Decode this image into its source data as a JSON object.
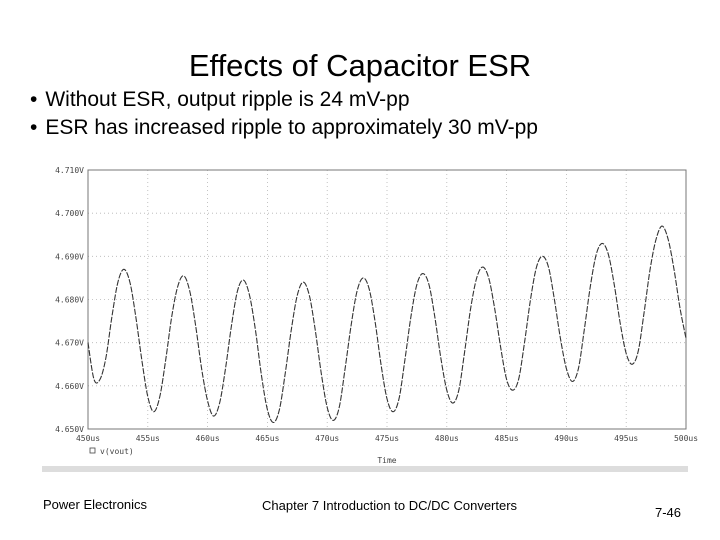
{
  "slide": {
    "title": "Effects of Capacitor ESR",
    "bullets": [
      "Without ESR, output ripple is 24 mV-pp",
      "ESR has increased ripple to approximately 30 mV-pp"
    ]
  },
  "footer": {
    "left": "Power Electronics",
    "center": "Chapter 7 Introduction to DC/DC Converters",
    "right": "7-46"
  },
  "chart_data": {
    "type": "line",
    "title": "",
    "xlabel": "Time",
    "ylabel": "",
    "x_unit": "us",
    "xlim": [
      450,
      500
    ],
    "ylim": [
      4.65,
      4.71
    ],
    "x_ticks": [
      {
        "value": 450,
        "label": "450us"
      },
      {
        "value": 455,
        "label": "455us"
      },
      {
        "value": 460,
        "label": "460us"
      },
      {
        "value": 465,
        "label": "465us"
      },
      {
        "value": 470,
        "label": "470us"
      },
      {
        "value": 475,
        "label": "475us"
      },
      {
        "value": 480,
        "label": "480us"
      },
      {
        "value": 485,
        "label": "485us"
      },
      {
        "value": 490,
        "label": "490us"
      },
      {
        "value": 495,
        "label": "495us"
      },
      {
        "value": 500,
        "label": "500us"
      }
    ],
    "y_ticks": [
      {
        "value": 4.71,
        "label": "4.710V"
      },
      {
        "value": 4.7,
        "label": "4.700V"
      },
      {
        "value": 4.69,
        "label": "4.690V"
      },
      {
        "value": 4.68,
        "label": "4.680V"
      },
      {
        "value": 4.67,
        "label": "4.670V"
      },
      {
        "value": 4.66,
        "label": "4.660V"
      },
      {
        "value": 4.65,
        "label": "4.650V"
      }
    ],
    "grid": true,
    "legend": "bottom-left",
    "series": [
      {
        "name": "v(vout)",
        "color": "#333333",
        "points": [
          [
            450.0,
            4.67
          ],
          [
            450.5,
            4.6615
          ],
          [
            451.0,
            4.6615
          ],
          [
            451.5,
            4.6665
          ],
          [
            452.0,
            4.676
          ],
          [
            452.5,
            4.684
          ],
          [
            453.0,
            4.687
          ],
          [
            453.5,
            4.684
          ],
          [
            454.0,
            4.676
          ],
          [
            454.5,
            4.666
          ],
          [
            455.0,
            4.6575
          ],
          [
            455.5,
            4.654
          ],
          [
            456.0,
            4.6575
          ],
          [
            456.5,
            4.666
          ],
          [
            457.0,
            4.676
          ],
          [
            457.5,
            4.683
          ],
          [
            458.0,
            4.6855
          ],
          [
            458.5,
            4.682
          ],
          [
            459.0,
            4.674
          ],
          [
            459.5,
            4.664
          ],
          [
            460.0,
            4.6565
          ],
          [
            460.5,
            4.653
          ],
          [
            461.0,
            4.656
          ],
          [
            461.5,
            4.664
          ],
          [
            462.0,
            4.674
          ],
          [
            462.5,
            4.682
          ],
          [
            463.0,
            4.6845
          ],
          [
            463.5,
            4.681
          ],
          [
            464.0,
            4.673
          ],
          [
            464.5,
            4.6625
          ],
          [
            465.0,
            4.6545
          ],
          [
            465.5,
            4.6515
          ],
          [
            466.0,
            4.6545
          ],
          [
            466.5,
            4.663
          ],
          [
            467.0,
            4.673
          ],
          [
            467.5,
            4.681
          ],
          [
            468.0,
            4.684
          ],
          [
            468.5,
            4.681
          ],
          [
            469.0,
            4.673
          ],
          [
            469.5,
            4.663
          ],
          [
            470.0,
            4.655
          ],
          [
            470.5,
            4.652
          ],
          [
            471.0,
            4.655
          ],
          [
            471.5,
            4.664
          ],
          [
            472.0,
            4.674
          ],
          [
            472.5,
            4.682
          ],
          [
            473.0,
            4.685
          ],
          [
            473.5,
            4.6825
          ],
          [
            474.0,
            4.675
          ],
          [
            474.5,
            4.665
          ],
          [
            475.0,
            4.657
          ],
          [
            475.5,
            4.654
          ],
          [
            476.0,
            4.657
          ],
          [
            476.5,
            4.666
          ],
          [
            477.0,
            4.676
          ],
          [
            477.5,
            4.6835
          ],
          [
            478.0,
            4.686
          ],
          [
            478.5,
            4.6835
          ],
          [
            479.0,
            4.676
          ],
          [
            479.5,
            4.6665
          ],
          [
            480.0,
            4.659
          ],
          [
            480.5,
            4.656
          ],
          [
            481.0,
            4.659
          ],
          [
            481.5,
            4.668
          ],
          [
            482.0,
            4.678
          ],
          [
            482.5,
            4.685
          ],
          [
            483.0,
            4.6875
          ],
          [
            483.5,
            4.685
          ],
          [
            484.0,
            4.678
          ],
          [
            484.5,
            4.669
          ],
          [
            485.0,
            4.6615
          ],
          [
            485.5,
            4.659
          ],
          [
            486.0,
            4.6615
          ],
          [
            486.5,
            4.67
          ],
          [
            487.0,
            4.68
          ],
          [
            487.5,
            4.6875
          ],
          [
            488.0,
            4.69
          ],
          [
            488.5,
            4.6875
          ],
          [
            489.0,
            4.68
          ],
          [
            489.5,
            4.671
          ],
          [
            490.0,
            4.664
          ],
          [
            490.5,
            4.661
          ],
          [
            491.0,
            4.664
          ],
          [
            491.5,
            4.673
          ],
          [
            492.0,
            4.683
          ],
          [
            492.5,
            4.6905
          ],
          [
            493.0,
            4.693
          ],
          [
            493.5,
            4.6905
          ],
          [
            494.0,
            4.6835
          ],
          [
            494.5,
            4.6745
          ],
          [
            495.0,
            4.6675
          ],
          [
            495.5,
            4.665
          ],
          [
            496.0,
            4.668
          ],
          [
            496.5,
            4.677
          ],
          [
            497.0,
            4.687
          ],
          [
            497.5,
            4.694
          ],
          [
            498.0,
            4.697
          ],
          [
            498.5,
            4.694
          ],
          [
            499.0,
            4.687
          ],
          [
            499.5,
            4.678
          ],
          [
            500.0,
            4.671
          ]
        ]
      }
    ]
  }
}
